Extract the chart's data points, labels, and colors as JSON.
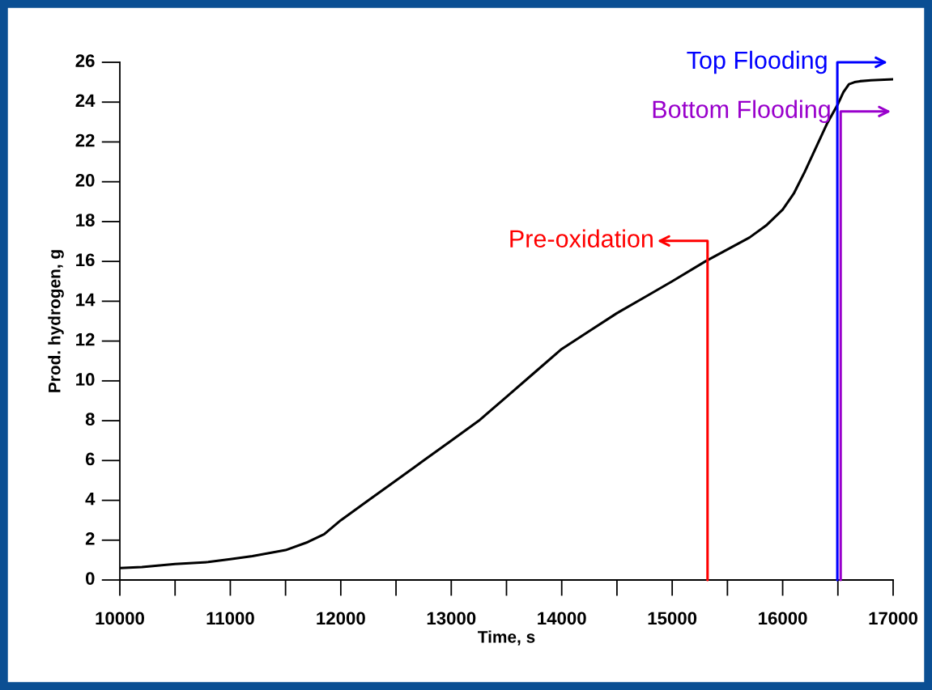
{
  "chart_data": {
    "type": "line",
    "xlabel": "Time, s",
    "ylabel": "Prod. hydrogen, g",
    "x": [
      10000,
      10200,
      10500,
      10800,
      11000,
      11200,
      11500,
      11700,
      11850,
      12000,
      12250,
      12500,
      12750,
      13000,
      13250,
      13500,
      13750,
      14000,
      14250,
      14500,
      14750,
      15000,
      15300,
      15500,
      15700,
      15850,
      16000,
      16100,
      16200,
      16300,
      16400,
      16500,
      16550,
      16600,
      16650,
      16700,
      16800,
      17000
    ],
    "series": [
      {
        "color": "#000000",
        "values": [
          0.6,
          0.65,
          0.8,
          0.9,
          1.05,
          1.2,
          1.5,
          1.9,
          2.3,
          3.0,
          4.0,
          5.0,
          6.0,
          7.0,
          8.0,
          9.2,
          10.4,
          11.6,
          12.5,
          13.4,
          14.2,
          15.0,
          16.0,
          16.6,
          17.2,
          17.8,
          18.6,
          19.4,
          20.5,
          21.7,
          22.9,
          23.9,
          24.5,
          24.9,
          25.0,
          25.05,
          25.1,
          25.15
        ]
      }
    ],
    "xlim": [
      10000,
      17000
    ],
    "xticks": [
      10000,
      11000,
      12000,
      13000,
      14000,
      15000,
      16000,
      17000
    ],
    "ylim": [
      0,
      26
    ],
    "yticks": [
      0,
      2,
      4,
      6,
      8,
      10,
      12,
      14,
      16,
      18,
      20,
      22,
      24,
      26
    ],
    "grid": false,
    "legend": false,
    "ref_lines": [
      {
        "axis": "x",
        "value": 15320,
        "label": "Pre-oxidation",
        "color": "#ff0000"
      },
      {
        "axis": "x",
        "value": 16495,
        "label": "Top Flooding",
        "color": "#0000ff"
      },
      {
        "axis": "x",
        "value": 16525,
        "label": "Bottom Flooding",
        "color": "#9900cc"
      }
    ]
  }
}
